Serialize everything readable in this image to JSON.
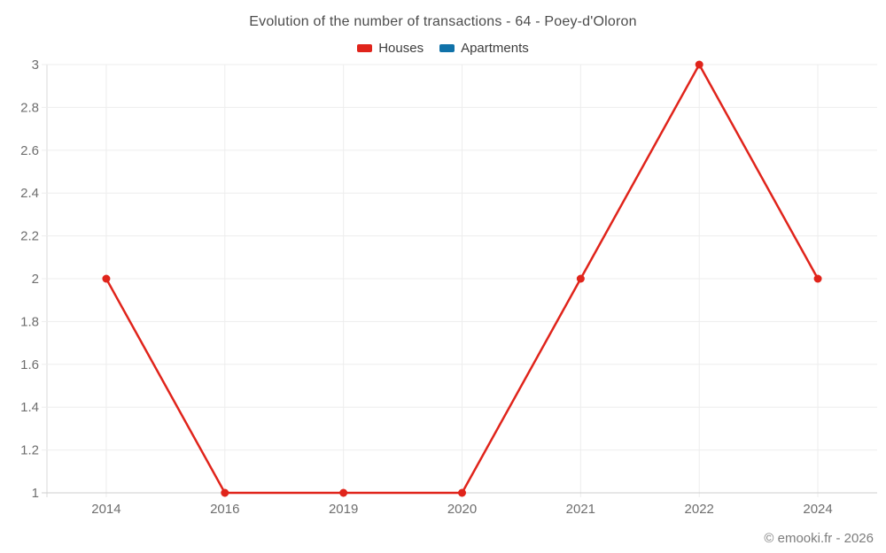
{
  "footer": "© emooki.fr - 2026",
  "colors": {
    "houses": "#e0241b",
    "apartments": "#1072a9",
    "grid": "#ededed",
    "axis": "#d9d9d9",
    "axis_bottom": "#cfcfcf",
    "tick_label": "#6e6e6e",
    "title_text": "#4c4c4c"
  },
  "chart_data": {
    "type": "line",
    "title": "Evolution of the number of transactions - 64 - Poey-d'Oloron",
    "categories": [
      "2014",
      "2016",
      "2019",
      "2020",
      "2021",
      "2022",
      "2024"
    ],
    "series": [
      {
        "name": "Houses",
        "color": "#e0241b",
        "values": [
          2,
          1,
          1,
          1,
          2,
          3,
          2
        ]
      },
      {
        "name": "Apartments",
        "color": "#1072a9",
        "values": []
      }
    ],
    "xlabel": "",
    "ylabel": "",
    "ylim": [
      1,
      3
    ],
    "yticks": [
      1,
      1.2,
      1.4,
      1.6,
      1.8,
      2,
      2.2,
      2.4,
      2.6,
      2.8,
      3
    ],
    "grid": true,
    "legend_position": "top"
  }
}
